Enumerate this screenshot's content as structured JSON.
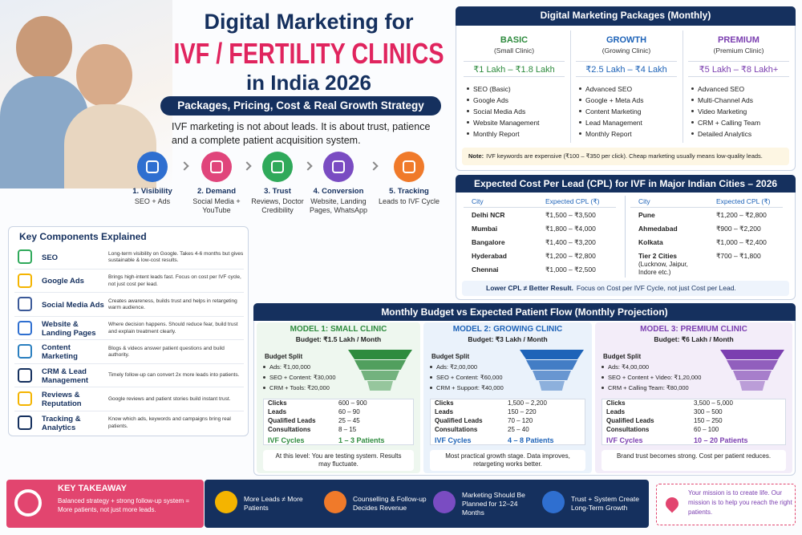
{
  "header": {
    "title_line1": "Digital Marketing for",
    "title_line2": "IVF / FERTILITY CLINICS",
    "title_line3": "in India 2026",
    "subtitle": "Packages, Pricing, Cost & Real Growth Strategy",
    "tagline": "IVF marketing is not about leads. It is about trust, patience and a complete patient acquisition system."
  },
  "steps": [
    {
      "title": "1. Visibility",
      "desc": "SEO + Ads"
    },
    {
      "title": "2. Demand",
      "desc": "Social Media + YouTube"
    },
    {
      "title": "3. Trust",
      "desc": "Reviews, Doctor Credibility"
    },
    {
      "title": "4. Conversion",
      "desc": "Website, Landing Pages, WhatsApp"
    },
    {
      "title": "5. Tracking",
      "desc": "Leads to IVF Cycle"
    }
  ],
  "components": {
    "title": "Key Components Explained",
    "items": [
      {
        "name": "SEO",
        "desc": "Long-term visibility on Google. Takes 4-6 months but gives sustainable & low-cost results."
      },
      {
        "name": "Google Ads",
        "desc": "Brings high-intent leads fast. Focus on cost per IVF cycle, not just cost per lead."
      },
      {
        "name": "Social Media Ads",
        "desc": "Creates awareness, builds trust and helps in retargeting warm audience."
      },
      {
        "name": "Website & Landing Pages",
        "desc": "Where decision happens. Should reduce fear, build trust and explain treatment clearly."
      },
      {
        "name": "Content Marketing",
        "desc": "Blogs & videos answer patient questions and build authority."
      },
      {
        "name": "CRM & Lead Management",
        "desc": "Timely follow-up can convert 2x more leads into patients."
      },
      {
        "name": "Reviews & Reputation",
        "desc": "Google reviews and patient stories build instant trust."
      },
      {
        "name": "Tracking & Analytics",
        "desc": "Know which ads, keywords and campaigns bring real patients."
      }
    ]
  },
  "packages": {
    "title": "Digital Marketing Packages (Monthly)",
    "plans": [
      {
        "name": "BASIC",
        "subtitle": "(Small Clinic)",
        "price": "₹1 Lakh – ₹1.8 Lakh",
        "features": [
          "SEO (Basic)",
          "Google Ads",
          "Social Media Ads",
          "Website Management",
          "Monthly Report"
        ]
      },
      {
        "name": "GROWTH",
        "subtitle": "(Growing Clinic)",
        "price": "₹2.5 Lakh – ₹4 Lakh",
        "features": [
          "Advanced SEO",
          "Google + Meta Ads",
          "Content Marketing",
          "Lead Management",
          "Monthly Report"
        ]
      },
      {
        "name": "PREMIUM",
        "subtitle": "(Premium Clinic)",
        "price": "₹5 Lakh – ₹8 Lakh+",
        "features": [
          "Advanced SEO",
          "Multi-Channel Ads",
          "Video Marketing",
          "CRM + Calling Team",
          "Detailed Analytics"
        ]
      }
    ],
    "note_label": "Note:",
    "note_text": "IVF keywords are expensive (₹100 – ₹350 per click). Cheap marketing usually means low-quality leads."
  },
  "cpl": {
    "title": "Expected Cost Per Lead (CPL) for IVF in Major Indian Cities – 2026",
    "headers": [
      "City",
      "Expected CPL (₹)"
    ],
    "left": [
      [
        "Delhi NCR",
        "₹1,500 – ₹3,500"
      ],
      [
        "Mumbai",
        "₹1,800 – ₹4,000"
      ],
      [
        "Bangalore",
        "₹1,400 – ₹3,200"
      ],
      [
        "Hyderabad",
        "₹1,200 – ₹2,800"
      ],
      [
        "Chennai",
        "₹1,000 – ₹2,500"
      ]
    ],
    "right": [
      [
        "Pune",
        "₹1,200 – ₹2,800"
      ],
      [
        "Ahmedabad",
        "₹900 – ₹2,200"
      ],
      [
        "Kolkata",
        "₹1,000 – ₹2,400"
      ],
      [
        "Tier 2 Cities",
        "₹700 – ₹1,800"
      ]
    ],
    "tier2_detail": "(Lucknow, Jaipur, Indore etc.)",
    "note_bold": "Lower CPL ≠ Better Result.",
    "note_text": "Focus on Cost per IVF Cycle, not just Cost per Lead."
  },
  "budget": {
    "title": "Monthly Budget vs Expected Patient Flow (Monthly Projection)",
    "split_title": "Budget Split",
    "row_labels": [
      "Clicks",
      "Leads",
      "Qualified Leads",
      "Consultations",
      "IVF Cycles"
    ],
    "models": [
      {
        "name": "MODEL 1: SMALL CLINIC",
        "budget": "Budget: ₹1.5 Lakh / Month",
        "split": [
          "Ads: ₹1,00,000",
          "SEO + Content: ₹30,000",
          "CRM + Tools: ₹20,000"
        ],
        "rows": [
          "600 – 900",
          "60 – 90",
          "25 – 45",
          "8 – 15",
          "1 – 3 Patients"
        ],
        "note": "At this level: You are testing system. Results may fluctuate."
      },
      {
        "name": "MODEL 2: GROWING CLINIC",
        "budget": "Budget: ₹3 Lakh / Month",
        "split": [
          "Ads: ₹2,00,000",
          "SEO + Content: ₹60,000",
          "CRM + Support: ₹40,000"
        ],
        "rows": [
          "1,500 – 2,200",
          "150 – 220",
          "70 – 120",
          "25 – 40",
          "4 – 8 Patients"
        ],
        "note": "Most practical growth stage. Data improves, retargeting works better."
      },
      {
        "name": "MODEL 3: PREMIUM CLINIC",
        "budget": "Budget: ₹6 Lakh / Month",
        "split": [
          "Ads: ₹4,00,000",
          "SEO + Content + Video: ₹1,20,000",
          "CRM + Calling Team: ₹80,000"
        ],
        "rows": [
          "3,500 – 5,000",
          "300 – 500",
          "150 – 250",
          "60 – 100",
          "10 – 20 Patients"
        ],
        "note": "Brand trust becomes strong. Cost per patient reduces."
      }
    ]
  },
  "footer": {
    "takeaway_title": "KEY TAKEAWAY",
    "takeaway_text": "Balanced strategy + strong follow-up system = More patients, not just more leads.",
    "items": [
      "More Leads ≠ More Patients",
      "Counselling & Follow-up Decides Revenue",
      "Marketing Should Be Planned for 12–24 Months",
      "Trust + System Create Long-Term Growth"
    ],
    "mission": "Your mission is to create life. Our mission is to help you reach the right patients."
  }
}
